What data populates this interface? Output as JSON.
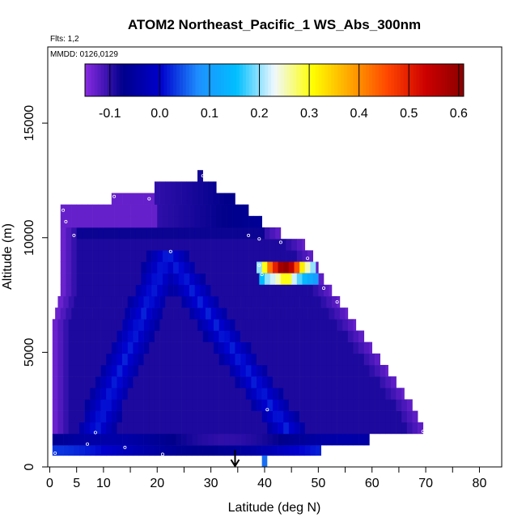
{
  "chart_data": {
    "type": "heatmap",
    "title": "ATOM2 Northeast_Pacific_1 WS_Abs_300nm",
    "flights_note": "Flts: 1,2",
    "dates_note": "MMDD: 0126,0129",
    "xlabel": "Latitude (deg N)",
    "ylabel": "Altitude (m)",
    "xlim": [
      0,
      85
    ],
    "ylim": [
      0,
      17500
    ],
    "x_ticks": [
      0,
      5,
      10,
      20,
      30,
      40,
      50,
      60,
      70,
      80
    ],
    "x_tick_labels": [
      "0",
      "5",
      "10",
      "20",
      "30",
      "40",
      "50",
      "60",
      "70",
      "80"
    ],
    "y_ticks": [
      0,
      5000,
      10000,
      15000
    ],
    "y_tick_labels": [
      "0",
      "5000",
      "10000",
      "15000"
    ],
    "colorbar": {
      "range": [
        -0.15,
        0.61
      ],
      "ticks": [
        -0.1,
        0.0,
        0.1,
        0.2,
        0.3,
        0.4,
        0.5,
        0.6
      ],
      "tick_labels": [
        "-0.1",
        "0.0",
        "0.1",
        "0.2",
        "0.3",
        "0.4",
        "0.5",
        "0.6"
      ],
      "colors": [
        "#8a2be2",
        "#00008b",
        "#0000cd",
        "#1e90ff",
        "#00bfff",
        "#f0f8ff",
        "#ffff00",
        "#ffa500",
        "#ff4500",
        "#cc0000",
        "#8b0000"
      ]
    },
    "arrow_latitude": 34.5,
    "bands": [
      {
        "alt_lo": 500,
        "alt_hi": 950,
        "lat_lo": 0.5,
        "lat_hi": 50.5,
        "value": -0.05
      },
      {
        "alt_lo": 950,
        "alt_hi": 1450,
        "lat_lo": 0.5,
        "lat_hi": 59.5,
        "value": -0.08
      },
      {
        "alt_lo": 1450,
        "alt_hi": 1950,
        "lat_lo": 0.5,
        "lat_hi": 69.5,
        "value": -0.09
      },
      {
        "alt_lo": 1950,
        "alt_hi": 2450,
        "lat_lo": 0.5,
        "lat_hi": 68.5,
        "value": -0.09
      },
      {
        "alt_lo": 2450,
        "alt_hi": 2950,
        "lat_lo": 0.5,
        "lat_hi": 67.5,
        "value": -0.09
      },
      {
        "alt_lo": 2950,
        "alt_hi": 3450,
        "lat_lo": 0.5,
        "lat_hi": 66.0,
        "value": -0.09
      },
      {
        "alt_lo": 3450,
        "alt_hi": 3950,
        "lat_lo": 0.5,
        "lat_hi": 64.5,
        "value": -0.09
      },
      {
        "alt_lo": 3950,
        "alt_hi": 4450,
        "lat_lo": 0.5,
        "lat_hi": 63.0,
        "value": -0.09
      },
      {
        "alt_lo": 4450,
        "alt_hi": 4950,
        "lat_lo": 0.5,
        "lat_hi": 61.5,
        "value": -0.09
      },
      {
        "alt_lo": 4950,
        "alt_hi": 5450,
        "lat_lo": 0.5,
        "lat_hi": 60.0,
        "value": -0.09
      },
      {
        "alt_lo": 5450,
        "alt_hi": 5950,
        "lat_lo": 0.5,
        "lat_hi": 58.5,
        "value": -0.09
      },
      {
        "alt_lo": 5950,
        "alt_hi": 6450,
        "lat_lo": 0.5,
        "lat_hi": 57.0,
        "value": -0.09
      },
      {
        "alt_lo": 6450,
        "alt_hi": 6950,
        "lat_lo": 1.0,
        "lat_hi": 55.5,
        "value": -0.09
      },
      {
        "alt_lo": 6950,
        "alt_hi": 7450,
        "lat_lo": 1.5,
        "lat_hi": 54.0,
        "value": -0.09
      },
      {
        "alt_lo": 7450,
        "alt_hi": 7950,
        "lat_lo": 2.0,
        "lat_hi": 52.5,
        "value": -0.09
      },
      {
        "alt_lo": 7950,
        "alt_hi": 8450,
        "lat_lo": 2.0,
        "lat_hi": 51.0,
        "value": -0.09
      },
      {
        "alt_lo": 8450,
        "alt_hi": 8950,
        "lat_lo": 2.0,
        "lat_hi": 50.0,
        "value": -0.09
      },
      {
        "alt_lo": 8950,
        "alt_hi": 9450,
        "lat_lo": 2.0,
        "lat_hi": 49.0,
        "value": -0.09
      },
      {
        "alt_lo": 9450,
        "alt_hi": 9950,
        "lat_lo": 2.0,
        "lat_hi": 47.5,
        "value": -0.09
      },
      {
        "alt_lo": 9950,
        "alt_hi": 10450,
        "lat_lo": 2.0,
        "lat_hi": 43.0,
        "value": -0.08
      },
      {
        "alt_lo": 10450,
        "alt_hi": 10950,
        "lat_lo": 2.0,
        "lat_hi": 39.5,
        "value": -0.08
      },
      {
        "alt_lo": 10950,
        "alt_hi": 11450,
        "lat_lo": 2.0,
        "lat_hi": 37.0,
        "value": -0.08
      },
      {
        "alt_lo": 11450,
        "alt_hi": 11950,
        "lat_lo": 11.5,
        "lat_hi": 34.5,
        "value": -0.07
      },
      {
        "alt_lo": 11950,
        "alt_hi": 12450,
        "lat_lo": 19.5,
        "lat_hi": 31.0,
        "value": -0.06
      },
      {
        "alt_lo": 12450,
        "alt_hi": 12950,
        "lat_lo": 27.5,
        "lat_hi": 28.5,
        "value": 0.06
      }
    ],
    "left_edge_purple": {
      "value": -0.14
    },
    "diagonal_light_bands": [
      {
        "lat_bottom": 7.5,
        "lat_top": 22.0,
        "alt_bottom": 1000,
        "alt_top": 9300,
        "value": 0.02
      },
      {
        "lat_bottom": 46.0,
        "lat_top": 22.0,
        "alt_bottom": 1000,
        "alt_top": 9300,
        "value": 0.02
      }
    ],
    "hotspot_rows": [
      {
        "alt_lo": 8450,
        "alt_hi": 8950,
        "lat_lo": 38.5,
        "lat_hi": 49.5,
        "values": [
          0.2,
          0.3,
          0.42,
          0.5,
          0.58,
          0.6,
          0.55,
          0.45,
          0.32,
          0.25,
          0.2
        ]
      },
      {
        "alt_lo": 7950,
        "alt_hi": 8450,
        "lat_lo": 39.0,
        "lat_hi": 50.0,
        "values": [
          0.15,
          0.2,
          0.22,
          0.25,
          0.3,
          0.3,
          0.22,
          0.18,
          0.14,
          0.12,
          0.1
        ]
      }
    ],
    "surface_hotspot": {
      "alt_lo": 0,
      "alt_hi": 500,
      "lat_lo": 39.5,
      "lat_hi": 40.5,
      "value": 0.06
    },
    "sample_points": [
      [
        1.0,
        600
      ],
      [
        7.0,
        1000
      ],
      [
        14.0,
        850
      ],
      [
        21.0,
        550
      ],
      [
        40.5,
        2500
      ],
      [
        69.5,
        1550
      ],
      [
        2.5,
        11200
      ],
      [
        3.0,
        10700
      ],
      [
        4.5,
        10100
      ],
      [
        12.0,
        11800
      ],
      [
        18.5,
        11700
      ],
      [
        22.5,
        9400
      ],
      [
        28.5,
        12700
      ],
      [
        37.0,
        10100
      ],
      [
        39.0,
        9950
      ],
      [
        43.0,
        9800
      ],
      [
        48.0,
        9100
      ],
      [
        50.5,
        9100
      ],
      [
        39.5,
        8400
      ],
      [
        39.0,
        8800
      ],
      [
        51.0,
        7800
      ],
      [
        53.5,
        7200
      ],
      [
        8.5,
        1500
      ]
    ]
  }
}
